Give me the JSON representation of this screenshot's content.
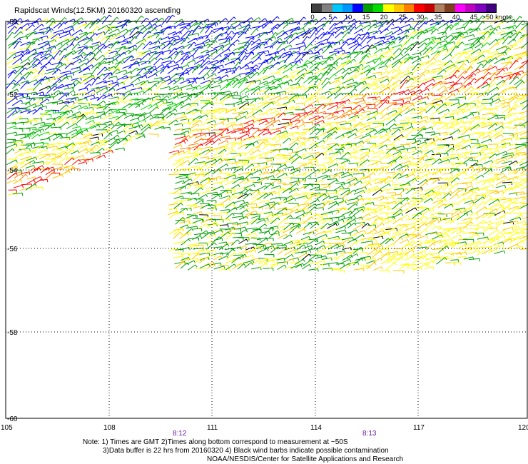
{
  "title": "Rapidscat Winds(12.5KM) 20160320 ascending",
  "legend": {
    "colors": [
      "#404040",
      "#808080",
      "#00c8ff",
      "#0096ff",
      "#0000ff",
      "#00a000",
      "#00dc00",
      "#ffff00",
      "#ffc800",
      "#ff8000",
      "#ff0000",
      "#c80000",
      "#b08060",
      "#804020",
      "#ff00ff",
      "#c000c0",
      "#8000c0",
      "#400080"
    ],
    "labels": [
      "0",
      "5",
      "10",
      "15",
      "20",
      "25",
      "30",
      "35",
      "40",
      "45",
      ">50 knots"
    ]
  },
  "axes": {
    "lat_labels": [
      "-50",
      "-52",
      "-54",
      "-56",
      "-58",
      "-60"
    ],
    "lon_labels": [
      "105",
      "108",
      "111",
      "114",
      "117",
      "120"
    ],
    "time_labels": [
      "8:12",
      "8:13"
    ]
  },
  "speed_colors": [
    "#0000ff",
    "#00a000",
    "#00dc00",
    "#ffff00",
    "#ffc800",
    "#ff8000",
    "#ff0000",
    "#000000"
  ],
  "footer": {
    "line1": "Note: 1) Times are GMT 2)Times along bottom correspond to measurement at ~50S",
    "line2": "3)Data buffer is 22 hrs from 20160320 4) Black wind barbs indicate possible contamination",
    "line3": "NOAA/NESDIS/Center for Satellite Applications and Research"
  }
}
